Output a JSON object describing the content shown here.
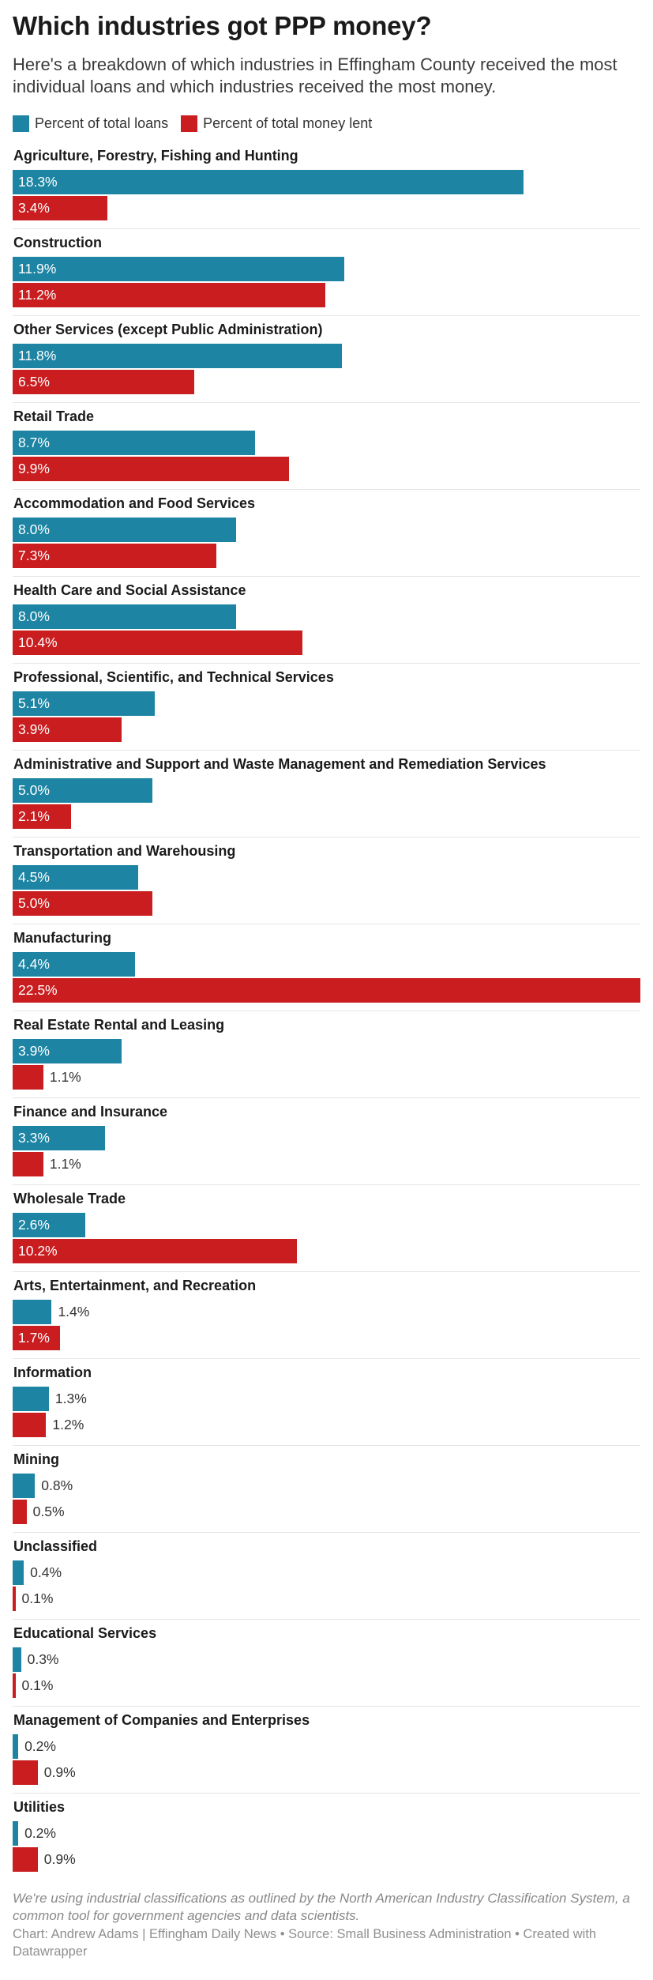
{
  "header": {
    "title": "Which industries got PPP money?",
    "subtitle": "Here's a breakdown of which industries in Effingham County received the most individual loans and which industries received the most money."
  },
  "footer": {
    "note": "We're using industrial classifications as outlined by the North American Industry Classification System, a common tool for government agencies and data scientists.",
    "credit": "Chart: Andrew Adams | Effingham Daily News • Source: Small Business Administration • Created with Datawrapper"
  },
  "chart_data": {
    "type": "bar",
    "orientation": "horizontal",
    "title": "Which industries got PPP money?",
    "legend_position": "top-left",
    "grid": false,
    "xlim": [
      0,
      22.5
    ],
    "value_suffix": "%",
    "colors": {
      "loans": "#1d85a3",
      "money": "#c91d20"
    },
    "categories": [
      "Agriculture, Forestry, Fishing and Hunting",
      "Construction",
      "Other Services (except Public Administration)",
      "Retail Trade",
      "Accommodation and Food Services",
      "Health Care and Social Assistance",
      "Professional, Scientific, and Technical Services",
      "Administrative and Support and Waste Management and Remediation Services",
      "Transportation and Warehousing",
      "Manufacturing",
      "Real Estate Rental and Leasing",
      "Finance and Insurance",
      "Wholesale Trade",
      "Arts, Entertainment, and Recreation",
      "Information",
      "Mining",
      "Unclassified",
      "Educational Services",
      "Management of Companies and Enterprises",
      "Utilities"
    ],
    "series": [
      {
        "name": "Percent of total loans",
        "color": "#1d85a3",
        "values": [
          18.3,
          11.9,
          11.8,
          8.7,
          8.0,
          8.0,
          5.1,
          5.0,
          4.5,
          4.4,
          3.9,
          3.3,
          2.6,
          1.4,
          1.3,
          0.8,
          0.4,
          0.3,
          0.2,
          0.2
        ],
        "labels": [
          "18.3%",
          "11.9%",
          "11.8%",
          "8.7%",
          "8.0%",
          "8.0%",
          "5.1%",
          "5.0%",
          "4.5%",
          "4.4%",
          "3.9%",
          "3.3%",
          "2.6%",
          "1.4%",
          "1.3%",
          "0.8%",
          "0.4%",
          "0.3%",
          "0.2%",
          "0.2%"
        ]
      },
      {
        "name": "Percent of total money lent",
        "color": "#c91d20",
        "values": [
          3.4,
          11.2,
          6.5,
          9.9,
          7.3,
          10.4,
          3.9,
          2.1,
          5.0,
          22.5,
          1.1,
          1.1,
          10.2,
          1.7,
          1.2,
          0.5,
          0.1,
          0.1,
          0.9,
          0.9
        ],
        "labels": [
          "3.4%",
          "11.2%",
          "6.5%",
          "9.9%",
          "7.3%",
          "10.4%",
          "3.9%",
          "2.1%",
          "5.0%",
          "22.5%",
          "1.1%",
          "1.1%",
          "10.2%",
          "1.7%",
          "1.2%",
          "0.5%",
          "0.1%",
          "0.1%",
          "0.9%",
          "0.9%"
        ]
      }
    ]
  }
}
